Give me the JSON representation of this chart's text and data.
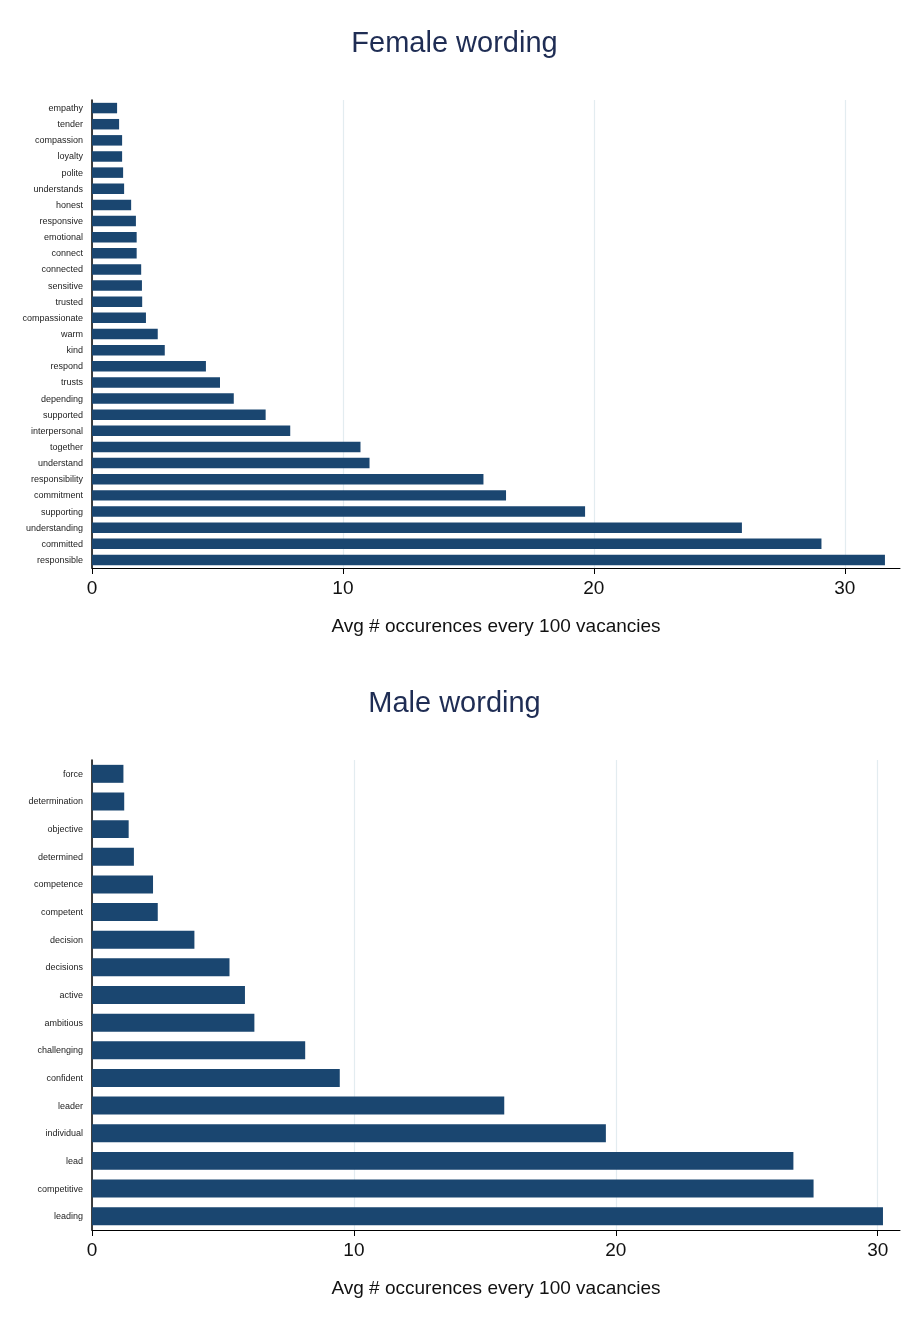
{
  "chart_data": [
    {
      "type": "bar",
      "orientation": "horizontal",
      "title": "Female wording",
      "xlabel": "Avg # occurences every 100 vacancies",
      "color": "#1a4670",
      "grid": "x",
      "xlim": [
        0,
        32.2
      ],
      "xticks": [
        0,
        10,
        20,
        30
      ],
      "categories": [
        "empathy",
        "tender",
        "compassion",
        "loyalty",
        "polite",
        "understands",
        "honest",
        "responsive",
        "emotional",
        "connect",
        "connected",
        "sensitive",
        "trusted",
        "compassionate",
        "warm",
        "kind",
        "respond",
        "trusts",
        "depending",
        "supported",
        "interpersonal",
        "together",
        "understand",
        "responsibility",
        "commitment",
        "supporting",
        "understanding",
        "committed",
        "responsible"
      ],
      "values": [
        1.0,
        1.08,
        1.2,
        1.2,
        1.24,
        1.28,
        1.56,
        1.75,
        1.78,
        1.78,
        1.96,
        1.99,
        2.0,
        2.15,
        2.62,
        2.9,
        4.54,
        5.1,
        5.65,
        6.92,
        7.9,
        10.7,
        11.06,
        15.6,
        16.5,
        19.65,
        25.9,
        29.07,
        31.6
      ]
    },
    {
      "type": "bar",
      "orientation": "horizontal",
      "title": "Male wording",
      "xlabel": "Avg # occurences every 100 vacancies",
      "color": "#1a4670",
      "grid": "x",
      "xlim": [
        0,
        30.85
      ],
      "xticks": [
        0,
        10,
        20,
        30
      ],
      "categories": [
        "force",
        "determination",
        "objective",
        "determined",
        "competence",
        "competent",
        "decision",
        "decisions",
        "active",
        "ambitious",
        "challenging",
        "confident",
        "leader",
        "individual",
        "lead",
        "competitive",
        "leading"
      ],
      "values": [
        1.2,
        1.23,
        1.4,
        1.6,
        2.33,
        2.51,
        3.91,
        5.25,
        5.84,
        6.2,
        8.14,
        9.46,
        15.74,
        19.62,
        26.78,
        27.55,
        30.2
      ]
    }
  ]
}
